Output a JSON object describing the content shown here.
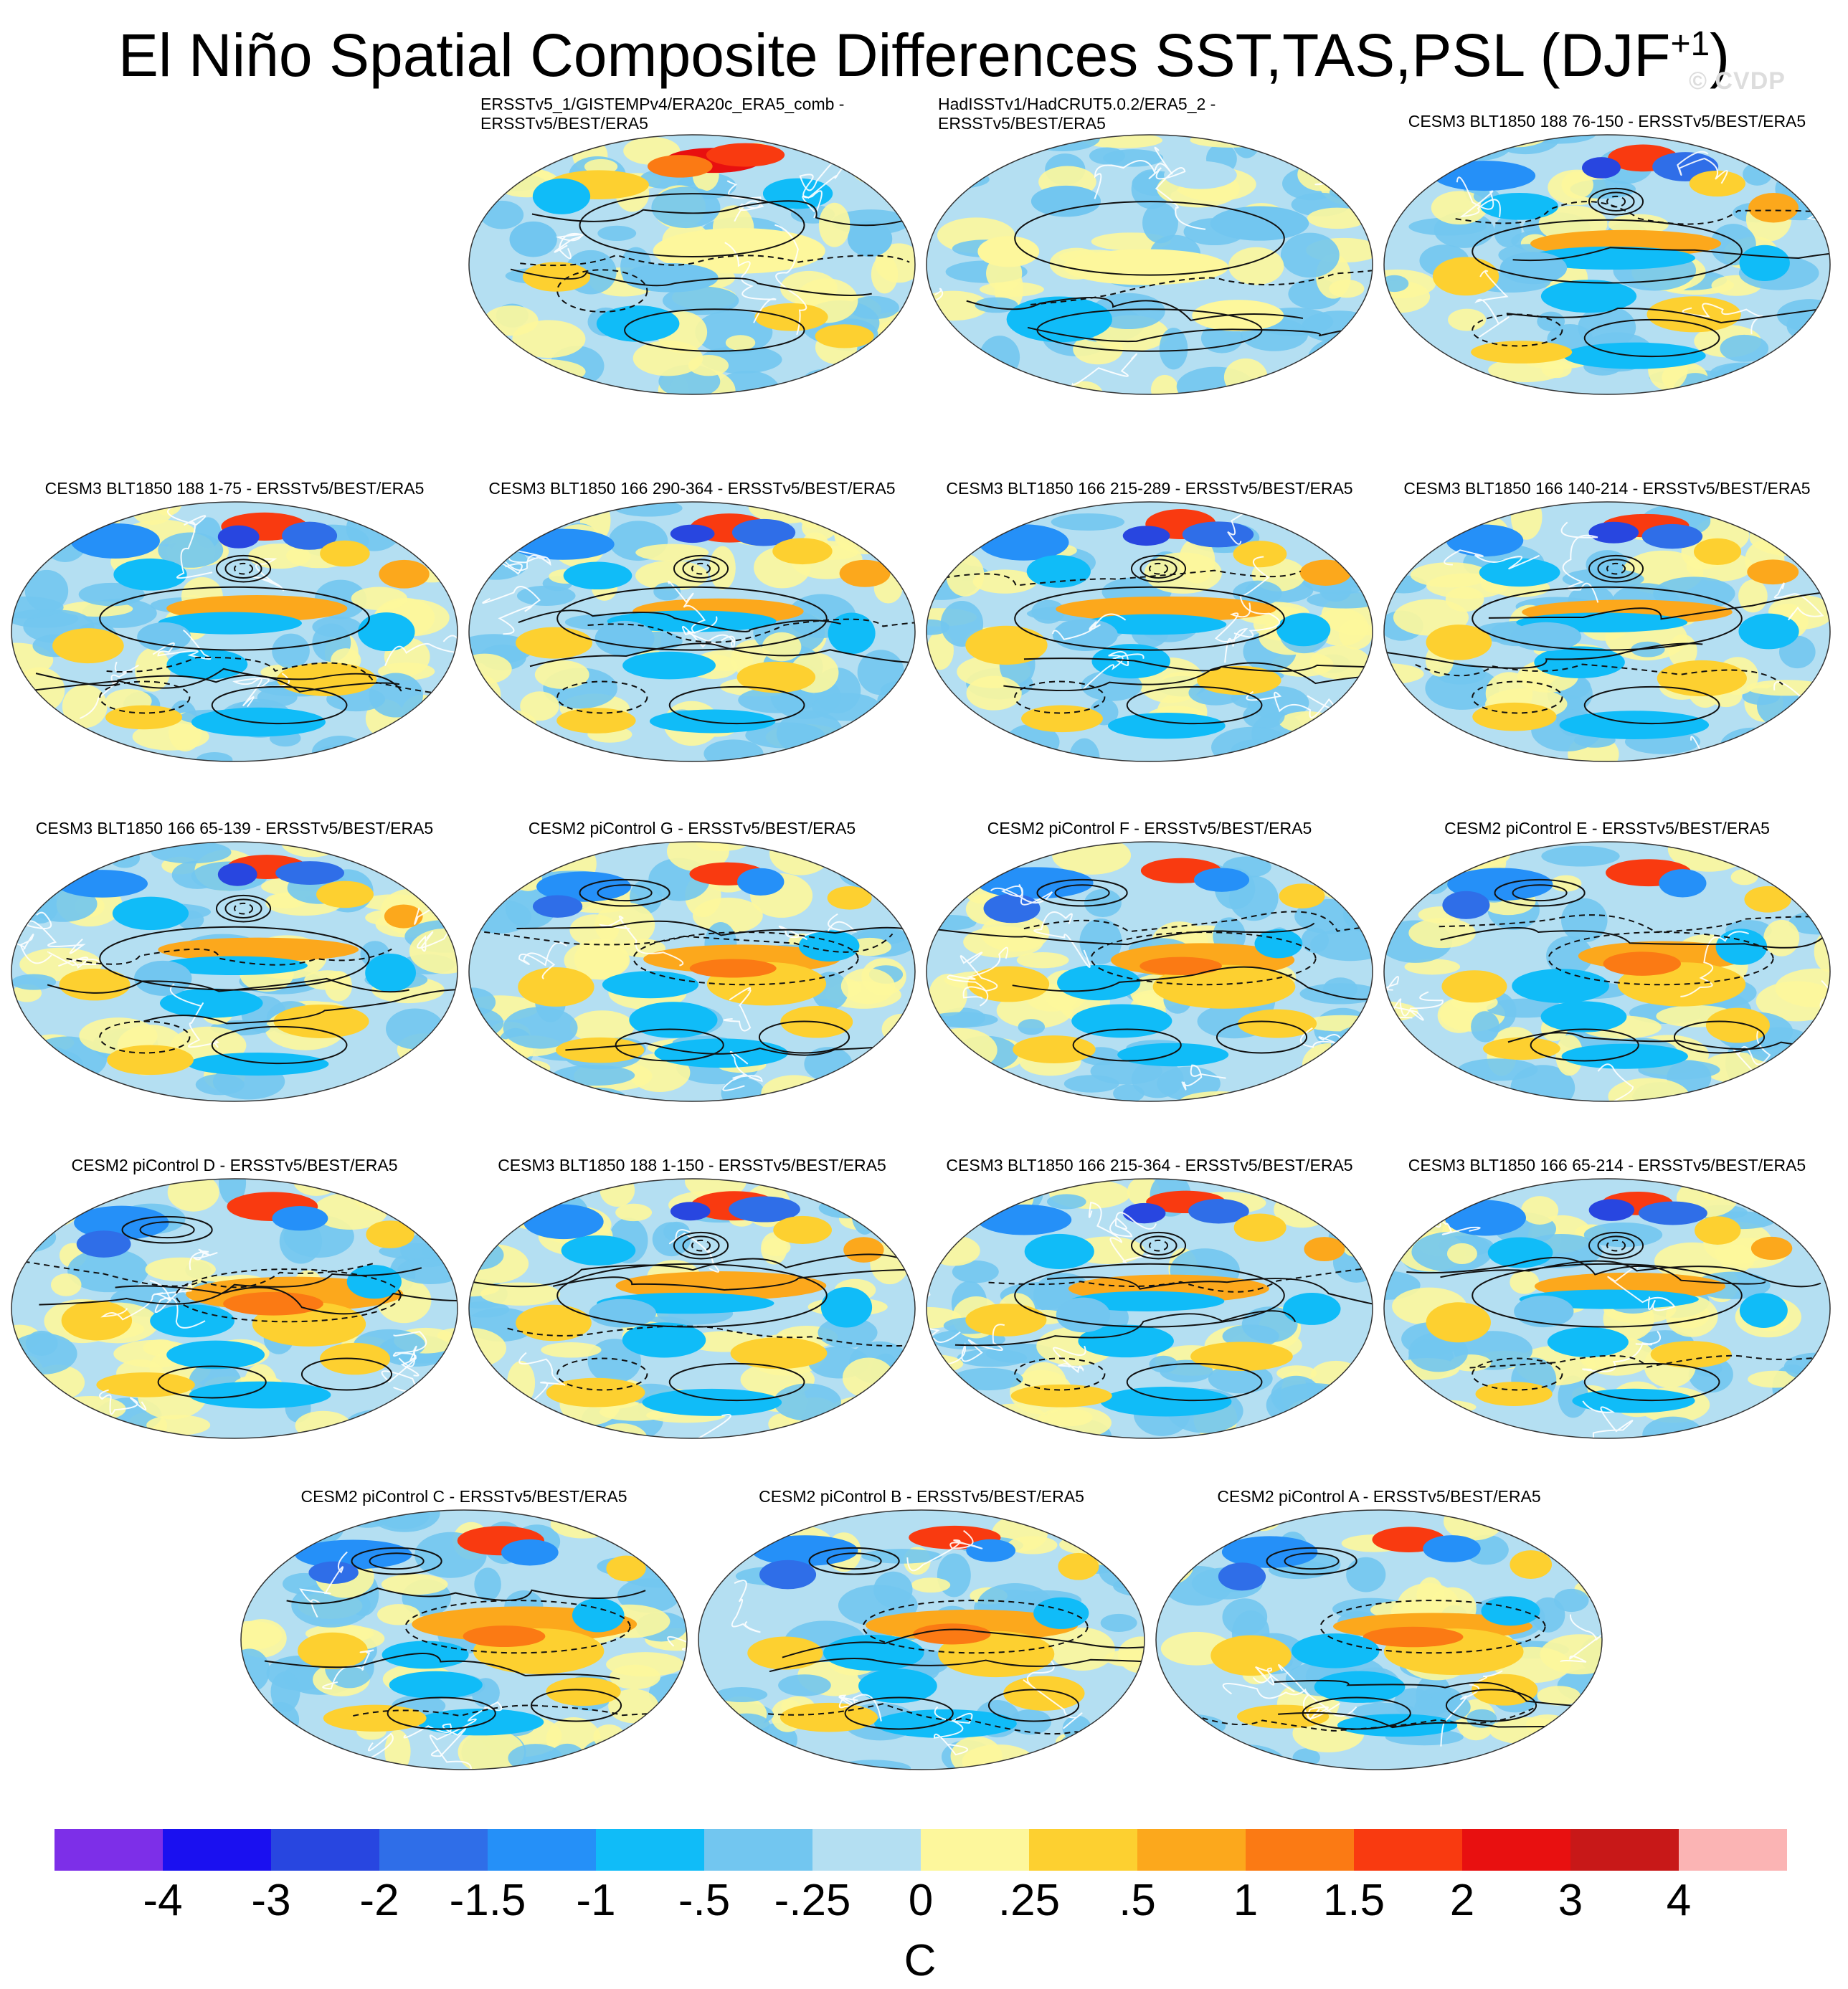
{
  "title": {
    "main": "El Niño Spatial Composite Differences SST,TAS,PSL (DJF",
    "superscript": "+1",
    "close": ")"
  },
  "watermark": "© CVDP",
  "chart_data": {
    "type": "heatmap",
    "description_kind": "global map composite panels",
    "panels": [
      {
        "title_lines": [
          "ERSSTv5_1/GISTEMPv4/ERA20c_ERA5_comb -",
          "ERSSTv5/BEST/ERA5"
        ],
        "row": 0,
        "col": 1,
        "pattern": "obs1"
      },
      {
        "title_lines": [
          "HadISSTv1/HadCRUT5.0.2/ERA5_2 -",
          "ERSSTv5/BEST/ERA5"
        ],
        "row": 0,
        "col": 2,
        "pattern": "obs2"
      },
      {
        "title_lines": [
          "CESM3 BLT1850 188 76-150 - ERSSTv5/BEST/ERA5"
        ],
        "row": 0,
        "col": 3,
        "pattern": "model"
      },
      {
        "title_lines": [
          "CESM3 BLT1850 188 1-75 - ERSSTv5/BEST/ERA5"
        ],
        "row": 1,
        "col": 0,
        "pattern": "model"
      },
      {
        "title_lines": [
          "CESM3 BLT1850 166 290-364 - ERSSTv5/BEST/ERA5"
        ],
        "row": 1,
        "col": 1,
        "pattern": "model"
      },
      {
        "title_lines": [
          "CESM3 BLT1850 166 215-289 - ERSSTv5/BEST/ERA5"
        ],
        "row": 1,
        "col": 2,
        "pattern": "model"
      },
      {
        "title_lines": [
          "CESM3 BLT1850 166 140-214 - ERSSTv5/BEST/ERA5"
        ],
        "row": 1,
        "col": 3,
        "pattern": "model"
      },
      {
        "title_lines": [
          "CESM3 BLT1850 166 65-139 - ERSSTv5/BEST/ERA5"
        ],
        "row": 2,
        "col": 0,
        "pattern": "model"
      },
      {
        "title_lines": [
          "CESM2 piControl G - ERSSTv5/BEST/ERA5"
        ],
        "row": 2,
        "col": 1,
        "pattern": "warm"
      },
      {
        "title_lines": [
          "CESM2 piControl F - ERSSTv5/BEST/ERA5"
        ],
        "row": 2,
        "col": 2,
        "pattern": "warm"
      },
      {
        "title_lines": [
          "CESM2 piControl E - ERSSTv5/BEST/ERA5"
        ],
        "row": 2,
        "col": 3,
        "pattern": "warm"
      },
      {
        "title_lines": [
          "CESM2 piControl D - ERSSTv5/BEST/ERA5"
        ],
        "row": 3,
        "col": 0,
        "pattern": "warm"
      },
      {
        "title_lines": [
          "CESM3 BLT1850 188 1-150 - ERSSTv5/BEST/ERA5"
        ],
        "row": 3,
        "col": 1,
        "pattern": "model"
      },
      {
        "title_lines": [
          "CESM3 BLT1850 166 215-364 - ERSSTv5/BEST/ERA5"
        ],
        "row": 3,
        "col": 2,
        "pattern": "model"
      },
      {
        "title_lines": [
          "CESM3 BLT1850 166 65-214 - ERSSTv5/BEST/ERA5"
        ],
        "row": 3,
        "col": 3,
        "pattern": "model"
      },
      {
        "title_lines": [
          "CESM2 piControl C - ERSSTv5/BEST/ERA5"
        ],
        "row": 4,
        "col": 0,
        "pattern": "warm"
      },
      {
        "title_lines": [
          "CESM2 piControl B - ERSSTv5/BEST/ERA5"
        ],
        "row": 4,
        "col": 1,
        "pattern": "warm"
      },
      {
        "title_lines": [
          "CESM2 piControl A - ERSSTv5/BEST/ERA5"
        ],
        "row": 4,
        "col": 2,
        "pattern": "warm"
      }
    ],
    "colorbar": {
      "levels": [
        "-4",
        "-3",
        "-2",
        "-1.5",
        "-1",
        "-.5",
        "-.25",
        "0",
        ".25",
        ".5",
        "1",
        "1.5",
        "2",
        "3",
        "4"
      ],
      "colors": [
        "#7d2fe8",
        "#1a10f0",
        "#2846e0",
        "#2f6ee8",
        "#2590f8",
        "#10bcf8",
        "#72c6f0",
        "#b4dff2",
        "#fdf79c",
        "#fdd030",
        "#fca81c",
        "#fb7a14",
        "#f93a10",
        "#e81010",
        "#c81818",
        "#fbb4b4"
      ],
      "units": "C"
    }
  }
}
